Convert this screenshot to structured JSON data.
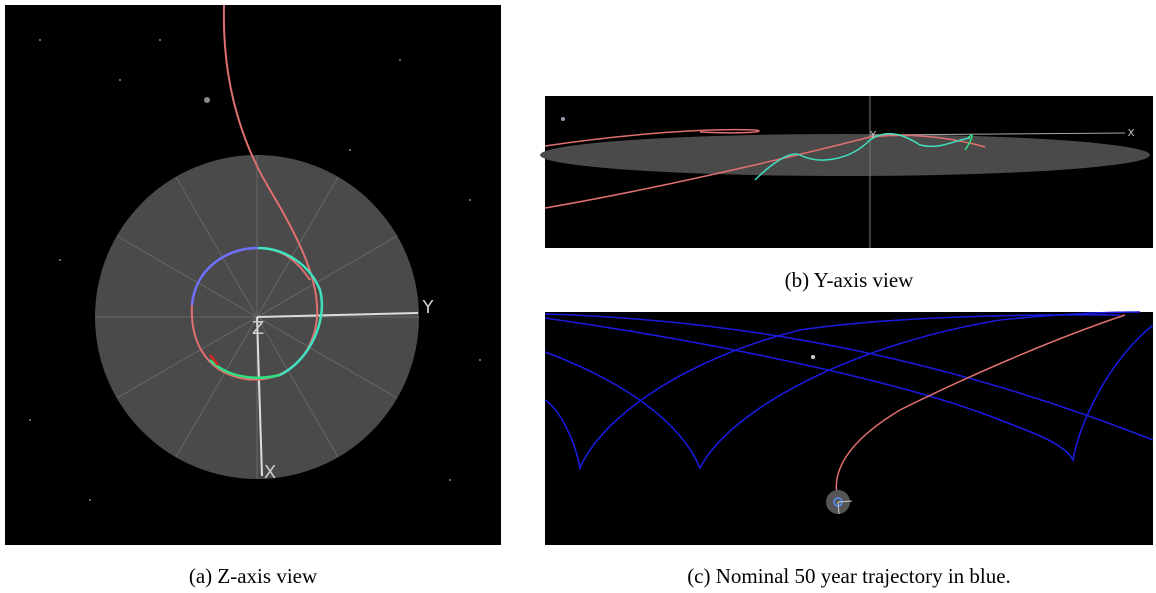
{
  "figure": {
    "panels": [
      {
        "caption": "(a) Z-axis view",
        "axis_labels": [
          "Z",
          "Y",
          "X"
        ]
      },
      {
        "caption": "(b) Y-axis view",
        "axis_labels": [
          "Y",
          "X"
        ]
      },
      {
        "caption": "(c) Nominal 50 year trajectory in blue."
      }
    ]
  }
}
